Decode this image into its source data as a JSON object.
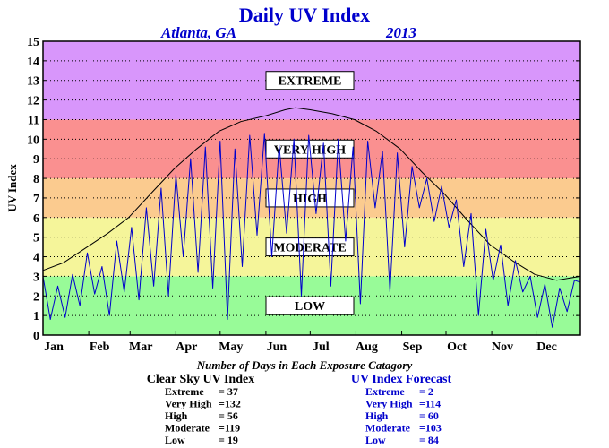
{
  "chart_data": {
    "type": "line",
    "title": "Daily UV Index",
    "subtitle_left": "Atlanta, GA",
    "subtitle_right": "2013",
    "ylabel": "UV Index",
    "ylim": [
      0,
      15
    ],
    "yticks": [
      "0",
      "1",
      "2",
      "3",
      "4",
      "5",
      "6",
      "7",
      "8",
      "9",
      "10",
      "11",
      "12",
      "13",
      "14",
      "15"
    ],
    "xlim": [
      1,
      365
    ],
    "month_ticks": [
      "Jan",
      "Feb",
      "Mar",
      "Apr",
      "May",
      "Jun",
      "Jul",
      "Aug",
      "Sep",
      "Oct",
      "Nov",
      "Dec"
    ],
    "grid": true,
    "bands": [
      {
        "label": "LOW",
        "from": 0,
        "to": 3,
        "color": "#98fb98"
      },
      {
        "label": "MODERATE",
        "from": 3,
        "to": 6,
        "color": "#f5f59a"
      },
      {
        "label": "HIGH",
        "from": 6,
        "to": 8,
        "color": "#fbcb8f"
      },
      {
        "label": "VERY HIGH",
        "from": 8,
        "to": 11,
        "color": "#fa9090"
      },
      {
        "label": "EXTREME",
        "from": 11,
        "to": 15,
        "color": "#d896fb"
      }
    ],
    "series": [
      {
        "name": "Clear Sky UV Index",
        "color": "#000000",
        "x": [
          1,
          15,
          31,
          45,
          59,
          75,
          90,
          105,
          120,
          135,
          152,
          165,
          172,
          182,
          197,
          212,
          227,
          243,
          258,
          273,
          288,
          304,
          319,
          334,
          349,
          365
        ],
        "y": [
          3.3,
          3.7,
          4.5,
          5.2,
          6.0,
          7.3,
          8.5,
          9.5,
          10.4,
          10.9,
          11.2,
          11.5,
          11.6,
          11.5,
          11.3,
          11.0,
          10.4,
          9.5,
          8.3,
          7.2,
          5.9,
          4.6,
          3.8,
          3.1,
          2.8,
          3.0
        ]
      },
      {
        "name": "UV Index Forecast",
        "color": "#0000cc",
        "x": [
          1,
          6,
          11,
          16,
          21,
          26,
          31,
          36,
          41,
          46,
          51,
          56,
          61,
          66,
          71,
          76,
          81,
          86,
          91,
          96,
          101,
          106,
          111,
          116,
          121,
          126,
          131,
          136,
          141,
          146,
          151,
          156,
          161,
          166,
          171,
          176,
          181,
          186,
          191,
          196,
          201,
          206,
          211,
          216,
          221,
          226,
          231,
          236,
          241,
          246,
          251,
          256,
          261,
          266,
          271,
          276,
          281,
          286,
          291,
          296,
          301,
          306,
          311,
          316,
          321,
          326,
          331,
          336,
          341,
          346,
          351,
          356,
          361,
          365
        ],
        "y": [
          3.0,
          0.8,
          2.5,
          0.9,
          3.1,
          1.5,
          4.2,
          2.1,
          3.5,
          1.0,
          4.8,
          2.2,
          5.5,
          1.8,
          6.5,
          2.5,
          7.5,
          2.0,
          8.2,
          4.0,
          9.0,
          3.2,
          9.6,
          2.4,
          9.9,
          0.8,
          9.5,
          3.5,
          10.2,
          5.1,
          10.3,
          4.0,
          9.7,
          5.2,
          10.0,
          2.0,
          10.2,
          6.2,
          9.8,
          2.5,
          10.0,
          4.8,
          9.6,
          1.6,
          9.9,
          6.5,
          9.4,
          2.2,
          9.3,
          4.5,
          8.6,
          6.5,
          8.0,
          5.8,
          7.6,
          5.5,
          6.9,
          3.5,
          6.2,
          1.0,
          5.4,
          2.8,
          4.6,
          1.5,
          3.8,
          2.2,
          3.0,
          0.9,
          2.6,
          0.4,
          2.4,
          1.2,
          2.8,
          2.7
        ]
      }
    ]
  },
  "footer": {
    "heading": "Number of Days in Each Exposure Catagory",
    "clear_sky": {
      "title": "Clear Sky UV Index",
      "rows": [
        {
          "label": "Extreme",
          "value": "= 37"
        },
        {
          "label": "Very High",
          "value": "=132"
        },
        {
          "label": "High",
          "value": "= 56"
        },
        {
          "label": "Moderate",
          "value": "=119"
        },
        {
          "label": "Low",
          "value": "= 19"
        }
      ]
    },
    "forecast": {
      "title": "UV Index Forecast",
      "rows": [
        {
          "label": "Extreme",
          "value": "= 2"
        },
        {
          "label": "Very High",
          "value": "=114"
        },
        {
          "label": "High",
          "value": "= 60"
        },
        {
          "label": "Moderate",
          "value": "=103"
        },
        {
          "label": "Low",
          "value": "= 84"
        }
      ]
    }
  }
}
